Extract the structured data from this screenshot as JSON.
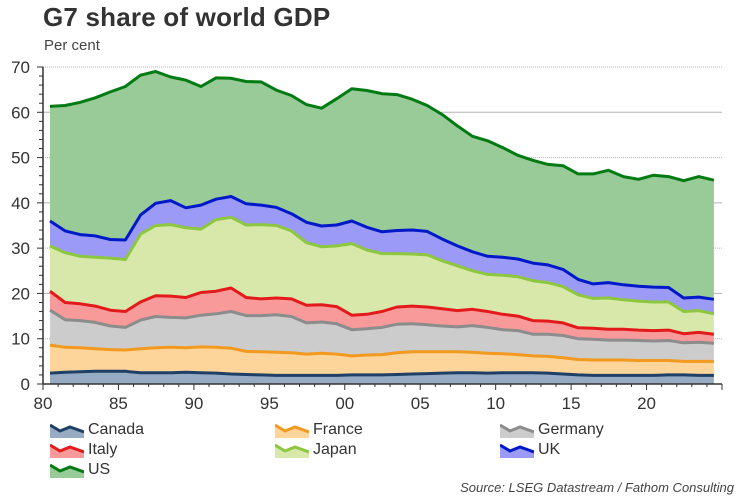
{
  "chart_data": {
    "type": "area",
    "stacked": true,
    "title": "G7 share of world GDP",
    "ylabel": "Per cent",
    "xlabel": "",
    "ylim": [
      0,
      70
    ],
    "yticks": [
      0,
      10,
      20,
      30,
      40,
      50,
      60,
      70
    ],
    "xlim": [
      1980,
      2025
    ],
    "xticks": [
      1980,
      1985,
      1990,
      1995,
      2000,
      2005,
      2010,
      2015,
      2020
    ],
    "xtick_labels": [
      "80",
      "85",
      "90",
      "95",
      "00",
      "05",
      "10",
      "15",
      "20"
    ],
    "grid": true,
    "legend_position": "bottom",
    "source": "Source: LSEG Datastream / Fathom Consulting",
    "x": [
      1980,
      1981,
      1982,
      1983,
      1984,
      1985,
      1986,
      1987,
      1988,
      1989,
      1990,
      1991,
      1992,
      1993,
      1994,
      1995,
      1996,
      1997,
      1998,
      1999,
      2000,
      2001,
      2002,
      2003,
      2004,
      2005,
      2006,
      2007,
      2008,
      2009,
      2010,
      2011,
      2012,
      2013,
      2014,
      2015,
      2016,
      2017,
      2018,
      2019,
      2020,
      2021,
      2022,
      2023,
      2024
    ],
    "series": [
      {
        "name": "Canada",
        "line_color": "#1f3f66",
        "fill_color": "#97abc2",
        "values": [
          2.4,
          2.6,
          2.7,
          2.8,
          2.8,
          2.8,
          2.5,
          2.5,
          2.5,
          2.6,
          2.5,
          2.4,
          2.2,
          2.1,
          2.0,
          1.9,
          1.9,
          1.9,
          1.9,
          1.9,
          2.0,
          2.0,
          2.0,
          2.1,
          2.2,
          2.3,
          2.4,
          2.5,
          2.5,
          2.4,
          2.5,
          2.5,
          2.5,
          2.4,
          2.2,
          2.0,
          1.9,
          1.9,
          1.9,
          1.9,
          1.9,
          2.0,
          2.0,
          1.9,
          1.9
        ]
      },
      {
        "name": "France",
        "line_color": "#f29a1f",
        "fill_color": "#fdd49a",
        "values": [
          6.2,
          5.5,
          5.3,
          5.0,
          4.8,
          4.7,
          5.3,
          5.5,
          5.6,
          5.4,
          5.7,
          5.7,
          5.7,
          5.1,
          5.1,
          5.1,
          5.0,
          4.7,
          4.9,
          4.7,
          4.2,
          4.4,
          4.5,
          4.8,
          4.9,
          4.8,
          4.7,
          4.6,
          4.5,
          4.4,
          4.2,
          4.0,
          3.7,
          3.7,
          3.6,
          3.4,
          3.4,
          3.4,
          3.4,
          3.3,
          3.3,
          3.2,
          3.0,
          3.1,
          3.1
        ]
      },
      {
        "name": "Germany",
        "line_color": "#8c8c8c",
        "fill_color": "#cccccc",
        "values": [
          7.7,
          6.1,
          6.0,
          5.8,
          5.2,
          5.0,
          6.3,
          6.9,
          6.6,
          6.6,
          7.0,
          7.4,
          8.1,
          7.9,
          8.0,
          8.3,
          8.0,
          6.9,
          6.9,
          6.7,
          5.8,
          5.8,
          6.0,
          6.3,
          6.2,
          6.0,
          5.7,
          5.5,
          5.9,
          5.7,
          5.3,
          5.3,
          4.8,
          4.9,
          4.9,
          4.6,
          4.6,
          4.4,
          4.4,
          4.4,
          4.3,
          4.4,
          4.1,
          4.2,
          4.0
        ]
      },
      {
        "name": "Italy",
        "line_color": "#e31a1c",
        "fill_color": "#f89a9a",
        "values": [
          4.2,
          3.8,
          3.7,
          3.6,
          3.5,
          3.5,
          4.0,
          4.6,
          4.7,
          4.5,
          5.0,
          5.0,
          5.2,
          4.0,
          3.7,
          3.7,
          3.9,
          3.9,
          3.8,
          3.8,
          3.2,
          3.2,
          3.5,
          3.8,
          3.9,
          3.9,
          3.8,
          3.6,
          3.6,
          3.5,
          3.4,
          3.2,
          3.0,
          2.9,
          2.8,
          2.4,
          2.4,
          2.4,
          2.4,
          2.3,
          2.3,
          2.3,
          2.0,
          2.2,
          2.0
        ]
      },
      {
        "name": "Japan",
        "line_color": "#8dc63f",
        "fill_color": "#d7e8aa",
        "values": [
          10.0,
          11.0,
          10.5,
          10.8,
          11.5,
          11.5,
          15.0,
          15.5,
          15.8,
          15.4,
          14.0,
          15.8,
          15.6,
          16.0,
          16.4,
          16.0,
          15.0,
          13.8,
          12.8,
          13.4,
          15.8,
          14.2,
          12.8,
          11.8,
          11.5,
          11.5,
          10.6,
          9.9,
          8.5,
          8.2,
          8.6,
          8.7,
          8.8,
          8.5,
          8.0,
          7.3,
          6.6,
          6.9,
          6.5,
          6.4,
          6.3,
          6.2,
          4.9,
          4.8,
          4.5
        ]
      },
      {
        "name": "UK",
        "line_color": "#0019c8",
        "fill_color": "#9b9bf7",
        "values": [
          5.5,
          4.8,
          4.8,
          4.7,
          4.1,
          4.3,
          4.2,
          4.9,
          5.3,
          4.4,
          5.3,
          4.5,
          4.6,
          4.7,
          4.3,
          4.0,
          3.8,
          4.5,
          4.6,
          4.6,
          5.0,
          5.0,
          4.8,
          5.1,
          5.3,
          5.2,
          4.8,
          4.4,
          4.2,
          4.0,
          4.0,
          3.9,
          3.9,
          3.9,
          3.8,
          3.4,
          3.2,
          3.4,
          3.3,
          3.3,
          3.3,
          3.2,
          3.0,
          3.0,
          3.2
        ]
      },
      {
        "name": "US",
        "line_color": "#007a12",
        "fill_color": "#98cb98",
        "values": [
          25.3,
          27.7,
          29.2,
          30.5,
          32.6,
          33.9,
          30.9,
          29.1,
          27.3,
          28.2,
          26.2,
          26.8,
          26.1,
          27.0,
          27.2,
          25.9,
          26.1,
          26.0,
          26.0,
          27.9,
          29.2,
          30.2,
          30.5,
          30.0,
          28.9,
          27.8,
          27.5,
          26.5,
          25.5,
          25.5,
          24.2,
          22.9,
          22.7,
          22.2,
          22.9,
          23.3,
          24.3,
          24.8,
          23.9,
          23.6,
          24.7,
          24.5,
          25.9,
          26.6,
          26.3
        ]
      }
    ]
  },
  "legend": [
    {
      "label": "Canada"
    },
    {
      "label": "France"
    },
    {
      "label": "Germany"
    },
    {
      "label": "Italy"
    },
    {
      "label": "Japan"
    },
    {
      "label": "UK"
    },
    {
      "label": "US"
    }
  ]
}
